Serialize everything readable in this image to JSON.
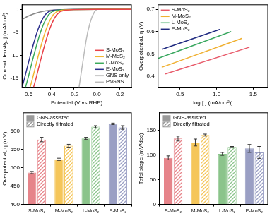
{
  "chart_data": [
    {
      "type": "line",
      "x_label": "Potential (V vs RHE)",
      "y_label": "Current density, j (mA/cm²)",
      "xlim": [
        -0.65,
        0.3
      ],
      "xticks": [
        -0.6,
        -0.4,
        -0.2,
        {
          "value": 0,
          "label": "0.0"
        },
        0.2
      ],
      "ylim": [
        -17,
        1
      ],
      "yticks": [
        -15,
        -10,
        -5,
        0
      ],
      "grid": false,
      "legend": "lower right",
      "series": [
        {
          "name": "S-MoS₂",
          "color": "#e8424a",
          "x": [
            -0.55,
            -0.53,
            -0.51,
            -0.49,
            -0.47,
            -0.45,
            -0.43,
            -0.41,
            -0.39,
            -0.37,
            -0.35,
            -0.32,
            -0.28,
            -0.2,
            0.0,
            0.3
          ],
          "values": [
            -17,
            -15.2,
            -13.2,
            -11.2,
            -9.3,
            -7.5,
            -5.8,
            -4.3,
            -3.0,
            -2.0,
            -1.2,
            -0.5,
            -0.2,
            -0.05,
            0,
            0
          ]
        },
        {
          "name": "M-MoS₂",
          "color": "#f2b632",
          "x": [
            -0.58,
            -0.56,
            -0.54,
            -0.52,
            -0.5,
            -0.48,
            -0.46,
            -0.44,
            -0.42,
            -0.4,
            -0.38,
            -0.35,
            -0.31,
            -0.23,
            0.0,
            0.3
          ],
          "values": [
            -17,
            -15.2,
            -13.2,
            -11.2,
            -9.3,
            -7.5,
            -5.8,
            -4.3,
            -3.0,
            -2.0,
            -1.2,
            -0.5,
            -0.2,
            -0.05,
            0,
            0
          ]
        },
        {
          "name": "L-MoS₂",
          "color": "#3aaa5a",
          "x": [
            -0.62,
            -0.6,
            -0.58,
            -0.56,
            -0.54,
            -0.52,
            -0.5,
            -0.48,
            -0.46,
            -0.44,
            -0.42,
            -0.39,
            -0.35,
            -0.27,
            0.0,
            0.3
          ],
          "values": [
            -17,
            -15.2,
            -13.2,
            -11.2,
            -9.3,
            -7.5,
            -5.8,
            -4.3,
            -3.0,
            -2.0,
            -1.2,
            -0.5,
            -0.2,
            -0.05,
            0,
            0
          ]
        },
        {
          "name": "E-MoS₂",
          "color": "#2b2f8c",
          "x": [
            -0.65,
            -0.63,
            -0.61,
            -0.59,
            -0.57,
            -0.55,
            -0.53,
            -0.51,
            -0.49,
            -0.47,
            -0.45,
            -0.42,
            -0.38,
            -0.3,
            0.0,
            0.3
          ],
          "values": [
            -17,
            -15.2,
            -13.2,
            -11.2,
            -9.3,
            -7.5,
            -5.8,
            -4.3,
            -3.0,
            -2.0,
            -1.2,
            -0.5,
            -0.2,
            -0.05,
            0,
            0
          ]
        },
        {
          "name": "GNS only",
          "color": "#888888",
          "x": [
            -0.65,
            -0.6,
            -0.55,
            -0.5,
            -0.45,
            -0.4,
            -0.3,
            -0.2,
            0.0,
            0.3
          ],
          "values": [
            -2.2,
            -1.5,
            -1.0,
            -0.6,
            -0.35,
            -0.2,
            -0.05,
            0,
            0,
            0
          ]
        },
        {
          "name": "Pt/GNS",
          "color": "#bbbbbb",
          "x": [
            -0.155,
            -0.14,
            -0.125,
            -0.11,
            -0.095,
            -0.08,
            -0.06,
            -0.04,
            -0.02,
            0.0,
            0.3
          ],
          "values": [
            -17,
            -14.5,
            -12,
            -9.5,
            -7,
            -5,
            -3,
            -1.5,
            -0.5,
            0,
            0
          ]
        }
      ]
    },
    {
      "type": "line",
      "x_label": "log [ j (mA/cm²)]",
      "y_label": "Overpotential, η (V)",
      "xlim": [
        0.2,
        1.7
      ],
      "xticks": [
        0.5,
        {
          "value": 1,
          "label": "1.0"
        },
        1.5
      ],
      "ylim": [
        0.35,
        0.72
      ],
      "yticks": [
        0.4,
        0.5,
        0.6,
        0.7
      ],
      "grid": false,
      "legend": "upper left",
      "series": [
        {
          "name": "S-MoS₂",
          "color": "#e85a6a",
          "x": [
            0.3,
            1.45
          ],
          "values": [
            0.41,
            0.53
          ]
        },
        {
          "name": "M-MoS₂",
          "color": "#f0b030",
          "x": [
            0.25,
            1.35
          ],
          "values": [
            0.44,
            0.57
          ]
        },
        {
          "name": "L-MoS₂",
          "color": "#3aa860",
          "x": [
            0.2,
            1.2
          ],
          "values": [
            0.48,
            0.6
          ]
        },
        {
          "name": "E-MoS₂",
          "color": "#1f2a80",
          "x": [
            0.25,
            1.05
          ],
          "values": [
            0.52,
            0.61
          ]
        }
      ]
    },
    {
      "type": "bar",
      "y_label": "Overpotential, η (mV)",
      "categories": [
        "S-MoS₂",
        "M-MoS₂",
        "L-MoS₂",
        "E-MoS₂"
      ],
      "ylim": [
        400,
        650
      ],
      "yticks": [
        400,
        450,
        500,
        550,
        600
      ],
      "grid": false,
      "legend": "upper left",
      "series": [
        {
          "name": "GNS-assisted",
          "color": "#999999",
          "line_style": "solid",
          "colors": [
            "#e6848a",
            "#f5c65a",
            "#8bc48b",
            "#9a9fc4"
          ],
          "values": [
            487,
            523,
            580,
            620
          ],
          "errors": [
            3,
            3,
            3,
            2
          ]
        },
        {
          "name": "Directly filtrated",
          "color": "#999999",
          "line_style": "hatched",
          "colors": [
            "#e6848a",
            "#f5c65a",
            "#8bc48b",
            "#9a9fc4"
          ],
          "values": [
            577,
            560,
            612,
            610
          ],
          "errors": [
            6,
            4,
            3,
            5
          ]
        }
      ]
    },
    {
      "type": "bar",
      "y_label": "Tafel slope (mV/dec)",
      "categories": [
        "S-MoS₂",
        "M-MoS₂",
        "L-MoS₂",
        "E-MoS₂"
      ],
      "ylim": [
        0,
        185
      ],
      "yticks": [
        0,
        50,
        100,
        150
      ],
      "grid": false,
      "legend": "upper left",
      "series": [
        {
          "name": "GNS-assisted",
          "color": "#999999",
          "line_style": "solid",
          "colors": [
            "#e6848a",
            "#f5c65a",
            "#8bc48b",
            "#9a9fc4"
          ],
          "values": [
            94,
            125,
            102,
            113
          ],
          "errors": [
            4,
            7,
            3,
            8
          ]
        },
        {
          "name": "Directly filtrated",
          "color": "#999999",
          "line_style": "hatched",
          "colors": [
            "#e6848a",
            "#f5c65a",
            "#8bc48b",
            "#9a9fc4"
          ],
          "values": [
            133,
            140,
            116,
            105
          ],
          "errors": [
            5,
            2,
            1,
            12
          ]
        }
      ]
    }
  ]
}
